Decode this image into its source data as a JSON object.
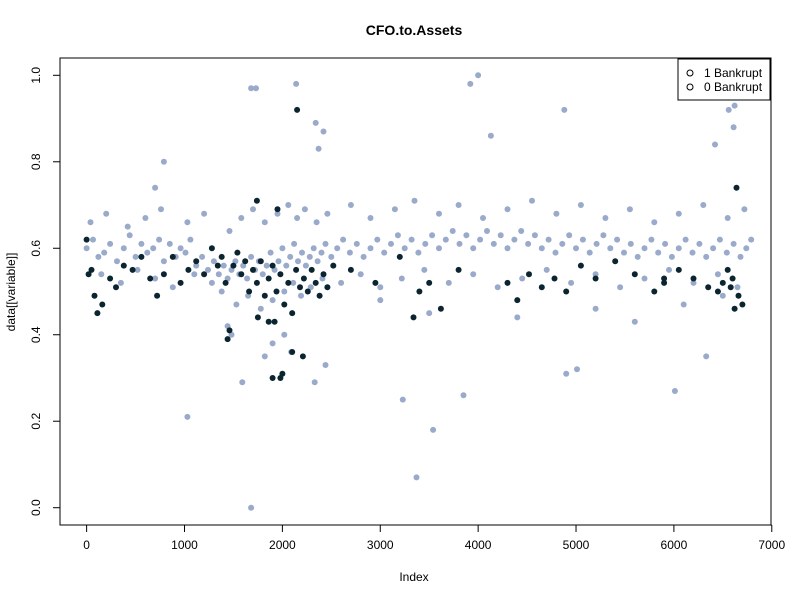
{
  "chart_data": {
    "type": "scatter",
    "title": "CFO.to.Assets",
    "xlabel": "Index",
    "ylabel": "data[[variable]]",
    "xlim": [
      -272,
      6992
    ],
    "ylim": [
      -0.04,
      1.04
    ],
    "xticks": [
      0,
      1000,
      2000,
      3000,
      4000,
      5000,
      6000,
      7000
    ],
    "xtick_labels": [
      "0",
      "1000",
      "2000",
      "3000",
      "4000",
      "5000",
      "6000",
      "7000"
    ],
    "yticks": [
      0.0,
      0.2,
      0.4,
      0.6,
      0.8,
      1.0
    ],
    "ytick_labels": [
      "0.0",
      "0.2",
      "0.4",
      "0.6",
      "0.8",
      "1.0"
    ],
    "legend_position": "top-right",
    "legend": [
      {
        "label": "1 Bankrupt",
        "symbol": "o"
      },
      {
        "label": "0 Bankrupt",
        "symbol": "o"
      }
    ],
    "colors": {
      "non_bankrupt": "#9AAACB",
      "bankrupt": "#0B2530"
    },
    "series": [
      {
        "name": "0 Bankrupt",
        "color": "#9AAACB",
        "x": [
          0,
          65,
          120,
          180,
          240,
          310,
          380,
          440,
          500,
          560,
          620,
          680,
          740,
          790,
          850,
          910,
          960,
          1010,
          1060,
          1120,
          1180,
          1240,
          1300,
          1350,
          1400,
          1440,
          1480,
          1520,
          1560,
          1600,
          1640,
          1680,
          1720,
          1760,
          1800,
          1840,
          1880,
          1920,
          1960,
          2000,
          2040,
          2080,
          2120,
          2160,
          2200,
          2240,
          2280,
          2320,
          2360,
          2400,
          2440,
          2500,
          2560,
          2620,
          2690,
          2760,
          2830,
          2900,
          2970,
          3040,
          3110,
          3180,
          3250,
          3320,
          3390,
          3460,
          3530,
          3600,
          3670,
          3740,
          3810,
          3880,
          3950,
          4020,
          4090,
          4160,
          4230,
          4300,
          4370,
          4440,
          4510,
          4580,
          4650,
          4720,
          4790,
          4860,
          4930,
          5000,
          5070,
          5140,
          5210,
          5280,
          5350,
          5420,
          5490,
          5560,
          5630,
          5700,
          5770,
          5840,
          5910,
          5980,
          6050,
          6120,
          6190,
          6260,
          6330,
          6400,
          6470,
          6540,
          6610,
          6680,
          6740,
          6790,
          40,
          200,
          420,
          600,
          760,
          1030,
          1200,
          1460,
          1580,
          1700,
          1820,
          1950,
          2060,
          2150,
          2230,
          2350,
          2460,
          2700,
          2900,
          3150,
          3350,
          3600,
          3800,
          4050,
          4300,
          4550,
          4800,
          5050,
          5300,
          5550,
          5800,
          6050,
          6300,
          6550,
          6720,
          150,
          350,
          520,
          700,
          880,
          1100,
          1280,
          1380,
          1530,
          1650,
          1780,
          1900,
          2020,
          2110,
          2190,
          2290,
          2410,
          2600,
          2800,
          3000,
          3220,
          3450,
          3700,
          3950,
          4200,
          4450,
          4700,
          4950,
          5200,
          5450,
          5700,
          5950,
          6200,
          6450,
          6650,
          1730,
          2140,
          2340,
          2370,
          2420,
          1680,
          3920,
          4000,
          4130,
          4880,
          6620,
          6420,
          6560,
          6610,
          790,
          700,
          1030,
          1590,
          1680,
          3370,
          3540,
          3230,
          3850,
          4900,
          5010,
          6010,
          6330,
          1480,
          1440,
          2330,
          2440,
          1820,
          1900,
          2020,
          2090,
          3000,
          3500,
          4400,
          5200,
          5600,
          6100,
          6500
        ],
        "y": [
          0.6,
          0.62,
          0.58,
          0.59,
          0.61,
          0.57,
          0.6,
          0.63,
          0.58,
          0.61,
          0.59,
          0.6,
          0.62,
          0.57,
          0.61,
          0.58,
          0.6,
          0.59,
          0.62,
          0.56,
          0.58,
          0.55,
          0.57,
          0.54,
          0.56,
          0.53,
          0.55,
          0.57,
          0.54,
          0.56,
          0.53,
          0.58,
          0.55,
          0.57,
          0.54,
          0.56,
          0.59,
          0.55,
          0.57,
          0.6,
          0.56,
          0.58,
          0.61,
          0.57,
          0.59,
          0.56,
          0.58,
          0.6,
          0.57,
          0.59,
          0.61,
          0.58,
          0.6,
          0.62,
          0.59,
          0.61,
          0.58,
          0.6,
          0.62,
          0.59,
          0.61,
          0.63,
          0.6,
          0.62,
          0.59,
          0.61,
          0.63,
          0.6,
          0.62,
          0.64,
          0.61,
          0.63,
          0.6,
          0.62,
          0.64,
          0.61,
          0.63,
          0.6,
          0.62,
          0.64,
          0.61,
          0.63,
          0.6,
          0.62,
          0.59,
          0.61,
          0.63,
          0.6,
          0.62,
          0.59,
          0.61,
          0.63,
          0.6,
          0.62,
          0.59,
          0.61,
          0.58,
          0.6,
          0.62,
          0.59,
          0.61,
          0.58,
          0.6,
          0.62,
          0.59,
          0.61,
          0.58,
          0.6,
          0.62,
          0.59,
          0.61,
          0.58,
          0.6,
          0.62,
          0.66,
          0.68,
          0.65,
          0.67,
          0.69,
          0.66,
          0.68,
          0.64,
          0.67,
          0.69,
          0.66,
          0.68,
          0.7,
          0.67,
          0.69,
          0.66,
          0.68,
          0.7,
          0.67,
          0.69,
          0.71,
          0.68,
          0.7,
          0.67,
          0.69,
          0.71,
          0.68,
          0.7,
          0.67,
          0.69,
          0.66,
          0.68,
          0.7,
          0.67,
          0.69,
          0.54,
          0.52,
          0.55,
          0.53,
          0.51,
          0.54,
          0.52,
          0.5,
          0.47,
          0.49,
          0.46,
          0.48,
          0.5,
          0.52,
          0.49,
          0.51,
          0.53,
          0.52,
          0.54,
          0.51,
          0.53,
          0.55,
          0.52,
          0.54,
          0.51,
          0.53,
          0.55,
          0.52,
          0.54,
          0.51,
          0.53,
          0.55,
          0.52,
          0.54,
          0.51,
          0.97,
          0.98,
          0.89,
          0.83,
          0.87,
          0.97,
          0.98,
          1.0,
          0.86,
          0.92,
          0.93,
          0.84,
          0.92,
          0.88,
          0.8,
          0.74,
          0.21,
          0.29,
          0.0,
          0.07,
          0.18,
          0.25,
          0.26,
          0.31,
          0.32,
          0.27,
          0.35,
          0.4,
          0.42,
          0.29,
          0.33,
          0.35,
          0.38,
          0.4,
          0.36,
          0.48,
          0.45,
          0.44,
          0.46,
          0.43,
          0.47,
          0.49
        ]
      },
      {
        "name": "1 Bankrupt",
        "color": "#0B2530",
        "x": [
          0,
          20,
          50,
          80,
          110,
          160,
          240,
          300,
          380,
          470,
          560,
          650,
          720,
          790,
          880,
          960,
          1040,
          1120,
          1200,
          1280,
          1340,
          1380,
          1420,
          1460,
          1500,
          1540,
          1580,
          1620,
          1660,
          1700,
          1740,
          1780,
          1820,
          1860,
          1900,
          1940,
          1980,
          2020,
          2060,
          2100,
          2140,
          2180,
          2220,
          2260,
          2300,
          2340,
          2380,
          2420,
          2460,
          2520,
          2700,
          2950,
          3200,
          3400,
          3500,
          3620,
          3800,
          4300,
          4400,
          4520,
          4650,
          4780,
          4900,
          5050,
          5200,
          5400,
          5600,
          5800,
          5900,
          6050,
          6200,
          6350,
          6450,
          6500,
          6550,
          6580,
          6600,
          6640,
          6660,
          6700,
          1740,
          2150,
          1950,
          1980,
          1900,
          1920,
          2000,
          2210,
          2100,
          1440,
          1750,
          1860,
          3340,
          5900,
          6620
        ],
        "y": [
          0.62,
          0.54,
          0.55,
          0.49,
          0.45,
          0.47,
          0.53,
          0.51,
          0.56,
          0.55,
          0.58,
          0.53,
          0.49,
          0.54,
          0.58,
          0.52,
          0.55,
          0.57,
          0.54,
          0.6,
          0.56,
          0.58,
          0.52,
          0.41,
          0.56,
          0.59,
          0.54,
          0.57,
          0.5,
          0.55,
          0.52,
          0.57,
          0.49,
          0.53,
          0.56,
          0.5,
          0.54,
          0.47,
          0.52,
          0.45,
          0.55,
          0.51,
          0.53,
          0.5,
          0.55,
          0.52,
          0.49,
          0.54,
          0.51,
          0.56,
          0.55,
          0.52,
          0.58,
          0.5,
          0.52,
          0.46,
          0.55,
          0.52,
          0.48,
          0.54,
          0.51,
          0.53,
          0.5,
          0.56,
          0.53,
          0.57,
          0.54,
          0.5,
          0.52,
          0.55,
          0.53,
          0.51,
          0.5,
          0.52,
          0.55,
          0.51,
          0.53,
          0.74,
          0.49,
          0.47,
          0.71,
          0.92,
          0.69,
          0.3,
          0.3,
          0.43,
          0.31,
          0.35,
          0.36,
          0.39,
          0.44,
          0.43,
          0.44,
          0.53,
          0.46
        ]
      }
    ]
  }
}
